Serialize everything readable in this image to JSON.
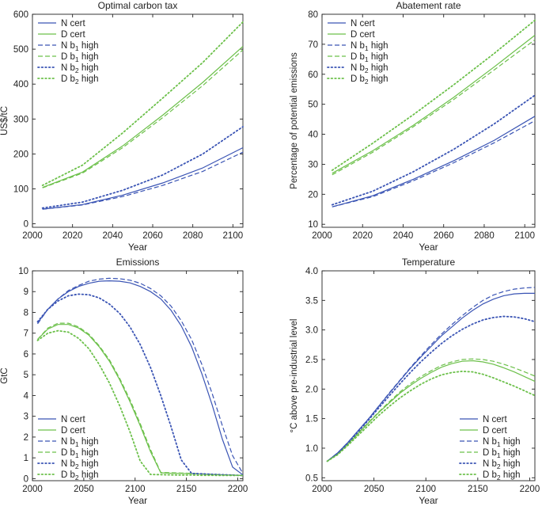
{
  "colors": {
    "N": "#3a54b4",
    "D": "#6cc04a",
    "axis": "#222222"
  },
  "chart_data": [
    {
      "type": "line",
      "title": "Optimal carbon tax",
      "xlabel": "Year",
      "ylabel": "US$/tC",
      "xlim": [
        2000,
        2105
      ],
      "ylim": [
        -10,
        600
      ],
      "xticks": [
        2000,
        2020,
        2040,
        2060,
        2080,
        2100
      ],
      "yticks": [
        0,
        100,
        200,
        300,
        400,
        500,
        600
      ],
      "legend": "top-left",
      "x": [
        2005,
        2025,
        2045,
        2065,
        2085,
        2105
      ],
      "series": [
        {
          "name": "N cert",
          "legend_main": "N cert",
          "legend_sub": "",
          "legend_tail": "",
          "color": "N",
          "style": "solid",
          "values": [
            42,
            55,
            82,
            117,
            160,
            218
          ]
        },
        {
          "name": "D cert",
          "legend_main": "D cert",
          "legend_sub": "",
          "legend_tail": "",
          "color": "D",
          "style": "solid",
          "values": [
            104,
            148,
            223,
            311,
            405,
            508
          ]
        },
        {
          "name": "N b1 high",
          "legend_main": "N b",
          "legend_sub": "1",
          "legend_tail": " high",
          "color": "N",
          "style": "dashed",
          "values": [
            42,
            54,
            78,
            110,
            150,
            205
          ]
        },
        {
          "name": "D b1 high",
          "legend_main": "D b",
          "legend_sub": "1",
          "legend_tail": " high",
          "color": "D",
          "style": "dashed",
          "values": [
            103,
            145,
            218,
            304,
            396,
            498
          ]
        },
        {
          "name": "N b2 high",
          "legend_main": "N b",
          "legend_sub": "2",
          "legend_tail": " high",
          "color": "N",
          "style": "dotted",
          "values": [
            45,
            62,
            96,
            140,
            200,
            278
          ]
        },
        {
          "name": "D b2 high",
          "legend_main": "D b",
          "legend_sub": "2",
          "legend_tail": " high",
          "color": "D",
          "style": "dotted",
          "values": [
            110,
            168,
            260,
            360,
            462,
            578
          ]
        }
      ]
    },
    {
      "type": "line",
      "title": "Abatement rate",
      "xlabel": "Year",
      "ylabel": "Percentage of potential emissions",
      "xlim": [
        2000,
        2105
      ],
      "ylim": [
        9,
        80
      ],
      "xticks": [
        2000,
        2020,
        2040,
        2060,
        2080,
        2100
      ],
      "yticks": [
        10,
        20,
        30,
        40,
        50,
        60,
        70,
        80
      ],
      "legend": "top-left",
      "x": [
        2005,
        2025,
        2045,
        2065,
        2085,
        2105
      ],
      "series": [
        {
          "name": "N cert",
          "legend_main": "N cert",
          "legend_sub": "",
          "legend_tail": "",
          "color": "N",
          "style": "solid",
          "values": [
            15.8,
            19.5,
            25,
            31.2,
            38,
            46
          ]
        },
        {
          "name": "D cert",
          "legend_main": "D cert",
          "legend_sub": "",
          "legend_tail": "",
          "color": "D",
          "style": "solid",
          "values": [
            27,
            34.5,
            43,
            52.3,
            62.5,
            73
          ]
        },
        {
          "name": "N b1 high",
          "legend_main": "N b",
          "legend_sub": "1",
          "legend_tail": " high",
          "color": "N",
          "style": "dashed",
          "values": [
            15.8,
            19.2,
            24.5,
            30.5,
            37.2,
            44.5
          ]
        },
        {
          "name": "D b1 high",
          "legend_main": "D b",
          "legend_sub": "1",
          "legend_tail": " high",
          "color": "D",
          "style": "dashed",
          "values": [
            26.5,
            34,
            42.5,
            51.6,
            61.5,
            71.5
          ]
        },
        {
          "name": "N b2 high",
          "legend_main": "N b",
          "legend_sub": "2",
          "legend_tail": " high",
          "color": "N",
          "style": "dotted",
          "values": [
            16.5,
            21,
            27.5,
            35,
            43.5,
            53
          ]
        },
        {
          "name": "D b2 high",
          "legend_main": "D b",
          "legend_sub": "2",
          "legend_tail": " high",
          "color": "D",
          "style": "dotted",
          "values": [
            28,
            37,
            46.5,
            56.5,
            67,
            78
          ]
        }
      ]
    },
    {
      "type": "line",
      "title": "Emissions",
      "xlabel": "Year",
      "ylabel": "GtC",
      "xlim": [
        2000,
        2205
      ],
      "ylim": [
        -0.1,
        10
      ],
      "xticks": [
        2000,
        2050,
        2100,
        2150,
        2200
      ],
      "yticks": [
        0,
        1,
        2,
        3,
        4,
        5,
        6,
        7,
        8,
        9,
        10
      ],
      "legend": "bottom-left",
      "x": [
        2005,
        2015,
        2025,
        2035,
        2045,
        2055,
        2065,
        2075,
        2085,
        2095,
        2105,
        2115,
        2125,
        2135,
        2145,
        2155,
        2165,
        2175,
        2185,
        2195,
        2205
      ],
      "series": [
        {
          "name": "N cert",
          "legend_main": "N cert",
          "legend_sub": "",
          "legend_tail": "",
          "color": "N",
          "style": "solid",
          "values": [
            7.5,
            8.15,
            8.65,
            9.0,
            9.25,
            9.4,
            9.5,
            9.52,
            9.5,
            9.42,
            9.25,
            9.0,
            8.65,
            8.1,
            7.35,
            6.35,
            5.05,
            3.55,
            1.9,
            0.55,
            0.18
          ]
        },
        {
          "name": "D cert",
          "legend_main": "D cert",
          "legend_sub": "",
          "legend_tail": "",
          "color": "D",
          "style": "solid",
          "values": [
            6.7,
            7.2,
            7.42,
            7.42,
            7.25,
            6.9,
            6.35,
            5.65,
            4.75,
            3.7,
            2.55,
            1.3,
            0.28,
            0.26,
            0.25,
            0.24,
            0.22,
            0.2,
            0.18,
            0.17,
            0.15
          ]
        },
        {
          "name": "N b1 high",
          "legend_main": "N b",
          "legend_sub": "1",
          "legend_tail": " high",
          "color": "N",
          "style": "dashed",
          "values": [
            7.45,
            8.15,
            8.65,
            9.05,
            9.3,
            9.5,
            9.6,
            9.64,
            9.62,
            9.55,
            9.4,
            9.15,
            8.8,
            8.3,
            7.6,
            6.7,
            5.5,
            4.1,
            2.55,
            1.1,
            0.25
          ]
        },
        {
          "name": "D b1 high",
          "legend_main": "D b",
          "legend_sub": "1",
          "legend_tail": " high",
          "color": "D",
          "style": "dashed",
          "values": [
            6.7,
            7.25,
            7.48,
            7.48,
            7.3,
            6.95,
            6.4,
            5.72,
            4.82,
            3.8,
            2.65,
            1.4,
            0.3,
            0.28,
            0.27,
            0.25,
            0.23,
            0.21,
            0.19,
            0.17,
            0.15
          ]
        },
        {
          "name": "N b2 high",
          "legend_main": "N b",
          "legend_sub": "2",
          "legend_tail": " high",
          "color": "N",
          "style": "dotted",
          "values": [
            7.55,
            8.15,
            8.55,
            8.8,
            8.88,
            8.85,
            8.7,
            8.4,
            7.95,
            7.3,
            6.45,
            5.35,
            4.0,
            2.5,
            0.9,
            0.25,
            0.23,
            0.21,
            0.19,
            0.17,
            0.15
          ]
        },
        {
          "name": "D b2 high",
          "legend_main": "D b",
          "legend_sub": "2",
          "legend_tail": " high",
          "color": "D",
          "style": "dotted",
          "values": [
            6.65,
            7.0,
            7.12,
            7.05,
            6.75,
            6.25,
            5.5,
            4.6,
            3.5,
            2.25,
            0.85,
            0.2,
            0.19,
            0.18,
            0.17,
            0.17,
            0.16,
            0.16,
            0.15,
            0.15,
            0.15
          ]
        }
      ]
    },
    {
      "type": "line",
      "title": "Temperature",
      "xlabel": "Year",
      "ylabel": "°C above pre-industrial level",
      "xlim": [
        2000,
        2205
      ],
      "ylim": [
        0.45,
        4.0
      ],
      "xticks": [
        2000,
        2050,
        2100,
        2150,
        2200
      ],
      "yticks": [
        0.5,
        1.0,
        1.5,
        2.0,
        2.5,
        3.0,
        3.5,
        4.0
      ],
      "tick_decimals": 1,
      "legend": "bottom-right",
      "x": [
        2005,
        2015,
        2025,
        2035,
        2045,
        2055,
        2065,
        2075,
        2085,
        2095,
        2105,
        2115,
        2125,
        2135,
        2145,
        2155,
        2165,
        2175,
        2185,
        2195,
        2205
      ],
      "series": [
        {
          "name": "N cert",
          "legend_main": "N cert",
          "legend_sub": "",
          "legend_tail": "",
          "color": "N",
          "style": "solid",
          "values": [
            0.78,
            0.92,
            1.1,
            1.3,
            1.5,
            1.72,
            1.93,
            2.14,
            2.35,
            2.54,
            2.72,
            2.9,
            3.05,
            3.2,
            3.33,
            3.44,
            3.52,
            3.58,
            3.61,
            3.62,
            3.62
          ]
        },
        {
          "name": "D cert",
          "legend_main": "D cert",
          "legend_sub": "",
          "legend_tail": "",
          "color": "D",
          "style": "solid",
          "values": [
            0.78,
            0.9,
            1.07,
            1.25,
            1.43,
            1.61,
            1.77,
            1.93,
            2.06,
            2.18,
            2.28,
            2.37,
            2.43,
            2.47,
            2.48,
            2.46,
            2.42,
            2.36,
            2.29,
            2.21,
            2.13
          ]
        },
        {
          "name": "N b1 high",
          "legend_main": "N b",
          "legend_sub": "1",
          "legend_tail": " high",
          "color": "N",
          "style": "dashed",
          "values": [
            0.78,
            0.92,
            1.1,
            1.3,
            1.5,
            1.72,
            1.94,
            2.15,
            2.36,
            2.56,
            2.75,
            2.93,
            3.09,
            3.24,
            3.38,
            3.5,
            3.59,
            3.65,
            3.69,
            3.71,
            3.72
          ]
        },
        {
          "name": "D b1 high",
          "legend_main": "D b",
          "legend_sub": "1",
          "legend_tail": " high",
          "color": "D",
          "style": "dashed",
          "values": [
            0.78,
            0.9,
            1.07,
            1.26,
            1.44,
            1.62,
            1.79,
            1.95,
            2.09,
            2.21,
            2.31,
            2.4,
            2.46,
            2.5,
            2.51,
            2.5,
            2.47,
            2.42,
            2.36,
            2.29,
            2.22
          ]
        },
        {
          "name": "N b2 high",
          "legend_main": "N b",
          "legend_sub": "2",
          "legend_tail": " high",
          "color": "N",
          "style": "dotted",
          "values": [
            0.78,
            0.91,
            1.09,
            1.28,
            1.48,
            1.69,
            1.89,
            2.09,
            2.28,
            2.46,
            2.62,
            2.77,
            2.9,
            3.01,
            3.1,
            3.17,
            3.21,
            3.23,
            3.22,
            3.19,
            3.14
          ]
        },
        {
          "name": "D b2 high",
          "legend_main": "D b",
          "legend_sub": "2",
          "legend_tail": " high",
          "color": "D",
          "style": "dotted",
          "values": [
            0.78,
            0.89,
            1.05,
            1.22,
            1.39,
            1.56,
            1.71,
            1.85,
            1.97,
            2.08,
            2.17,
            2.24,
            2.28,
            2.3,
            2.29,
            2.25,
            2.19,
            2.12,
            2.05,
            1.97,
            1.89
          ]
        }
      ]
    }
  ]
}
